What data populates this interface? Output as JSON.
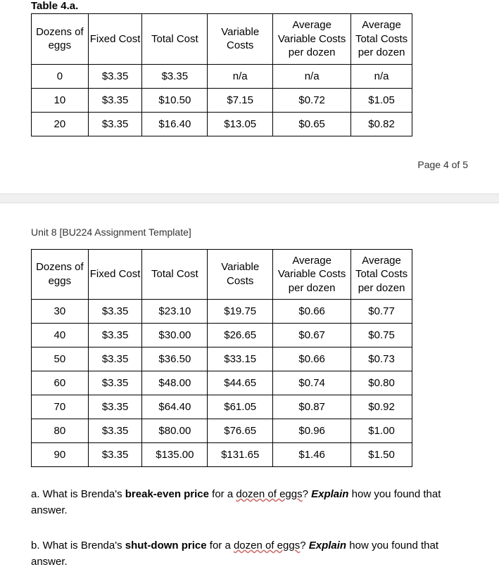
{
  "table1": {
    "title": "Table 4.a.",
    "columns": [
      "Dozens of eggs",
      "Fixed Cost",
      "Total Cost",
      "Variable Costs",
      "Average Variable Costs per dozen",
      "Average Total Costs per dozen"
    ],
    "rows": [
      [
        "0",
        "$3.35",
        "$3.35",
        "n/a",
        "n/a",
        "n/a"
      ],
      [
        "10",
        "$3.35",
        "$10.50",
        "$7.15",
        "$0.72",
        "$1.05"
      ],
      [
        "20",
        "$3.35",
        "$16.40",
        "$13.05",
        "$0.65",
        "$0.82"
      ]
    ]
  },
  "page_indicator": "Page 4 of 5",
  "unit_header": "Unit 8 [BU224 Assignment Template]",
  "table2": {
    "columns": [
      "Dozens of eggs",
      "Fixed Cost",
      "Total Cost",
      "Variable Costs",
      "Average Variable Costs per dozen",
      "Average Total Costs per dozen"
    ],
    "rows": [
      [
        "30",
        "$3.35",
        "$23.10",
        "$19.75",
        "$0.66",
        "$0.77"
      ],
      [
        "40",
        "$3.35",
        "$30.00",
        "$26.65",
        "$0.67",
        "$0.75"
      ],
      [
        "50",
        "$3.35",
        "$36.50",
        "$33.15",
        "$0.66",
        "$0.73"
      ],
      [
        "60",
        "$3.35",
        "$48.00",
        "$44.65",
        "$0.74",
        "$0.80"
      ],
      [
        "70",
        "$3.35",
        "$64.40",
        "$61.05",
        "$0.87",
        "$0.92"
      ],
      [
        "80",
        "$3.35",
        "$80.00",
        "$76.65",
        "$0.96",
        "$1.00"
      ],
      [
        "90",
        "$3.35",
        "$135.00",
        "$131.65",
        "$1.46",
        "$1.50"
      ]
    ]
  },
  "questions": {
    "a": {
      "prefix": "a. What is Brenda's ",
      "bold1": "break-even price",
      "mid1": " for a ",
      "underlined": "dozen of eggs",
      "mid2": "? ",
      "italic": "Explain",
      "suffix": " how you found that answer."
    },
    "b": {
      "prefix": "b. What is Brenda's ",
      "bold1": "shut-down price",
      "mid1": " for a ",
      "underlined": "dozen of eggs",
      "mid2": "? ",
      "italic": "Explain",
      "suffix": " how you found that answer."
    }
  }
}
